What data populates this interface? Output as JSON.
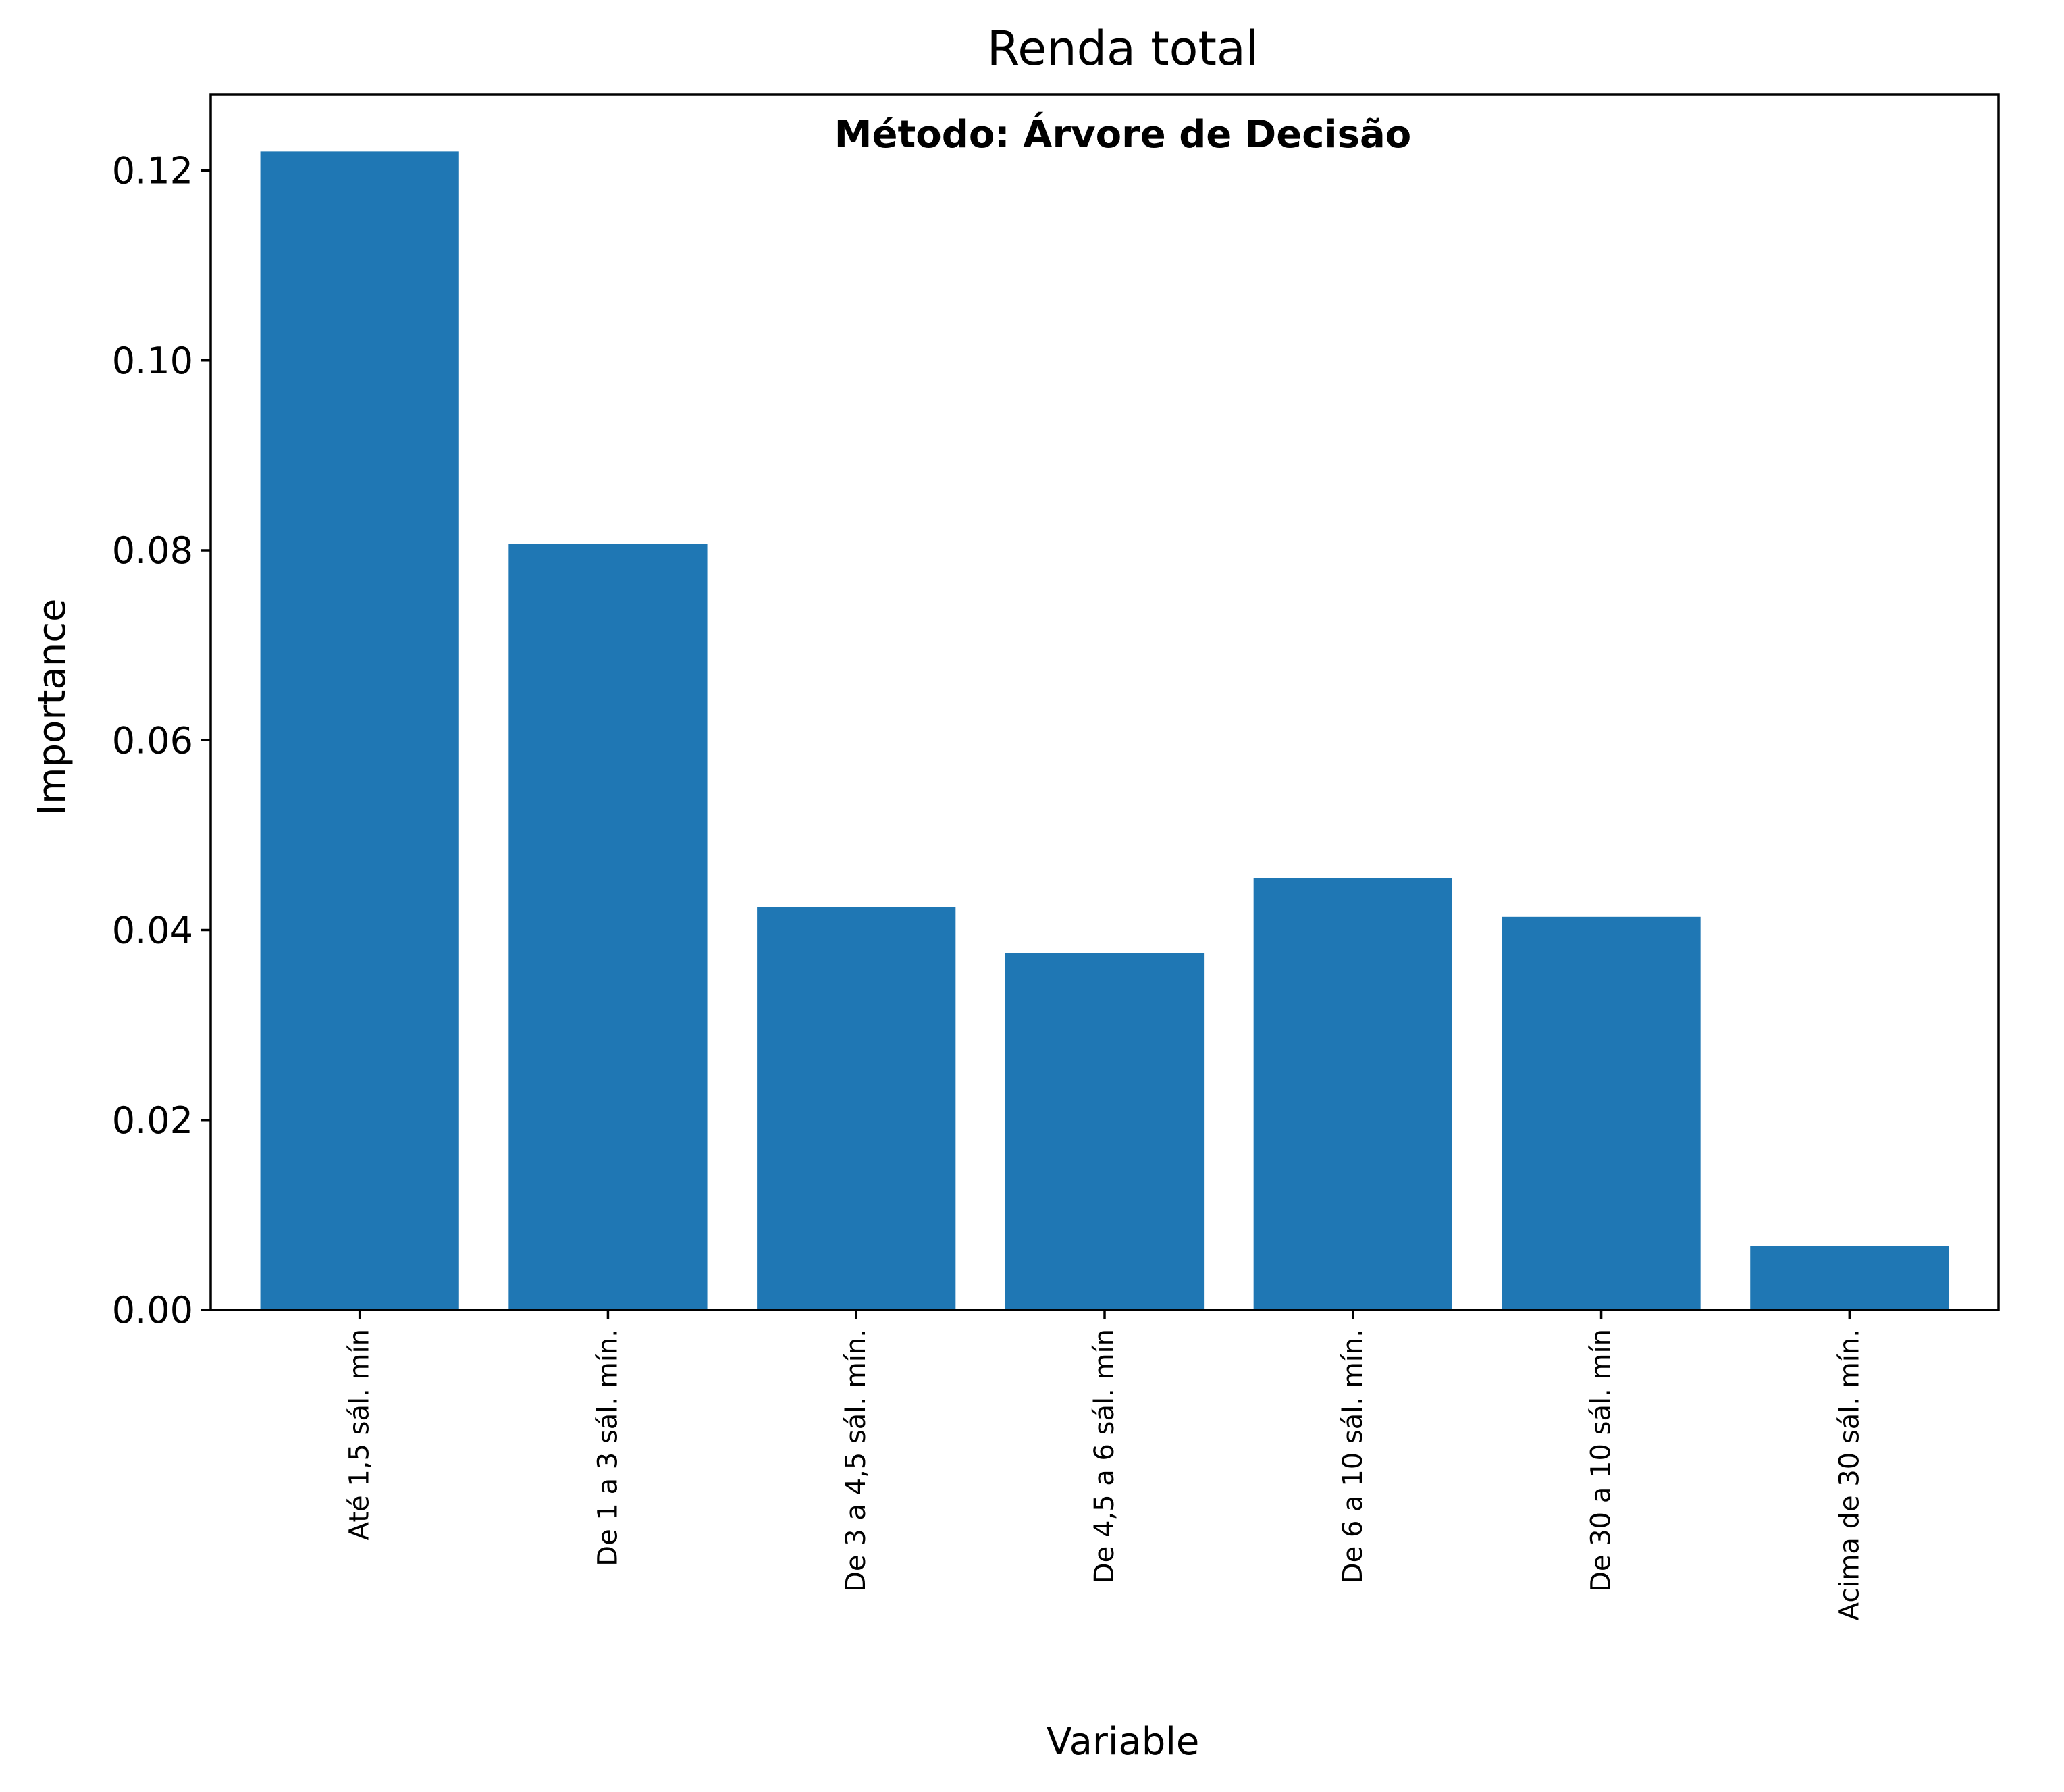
{
  "chart_data": {
    "type": "bar",
    "title": "Renda total",
    "annotation": "Método: Árvore de Decisão",
    "xlabel": "Variable",
    "ylabel": "Importance",
    "categories": [
      "Até 1,5 sál. mín",
      "De 1 a 3 sál. mín.",
      "De 3 a 4,5 sál. mín.",
      "De 4,5 a 6 sál. mín",
      "De 6 a 10 sál. mín.",
      "De 30 a 10 sál. mín",
      "Acima de 30 sál. mín."
    ],
    "values": [
      0.122,
      0.0807,
      0.0424,
      0.0376,
      0.0455,
      0.0414,
      0.0067
    ],
    "ylim": [
      0,
      0.128
    ],
    "yticks": [
      0.0,
      0.02,
      0.04,
      0.06,
      0.08,
      0.1,
      0.12
    ],
    "ytick_labels": [
      "0.00",
      "0.02",
      "0.04",
      "0.06",
      "0.08",
      "0.10",
      "0.12"
    ],
    "x_tick_rotation": "vertical",
    "grid": false,
    "legend": "none",
    "bar_color": "#1f77b4"
  }
}
